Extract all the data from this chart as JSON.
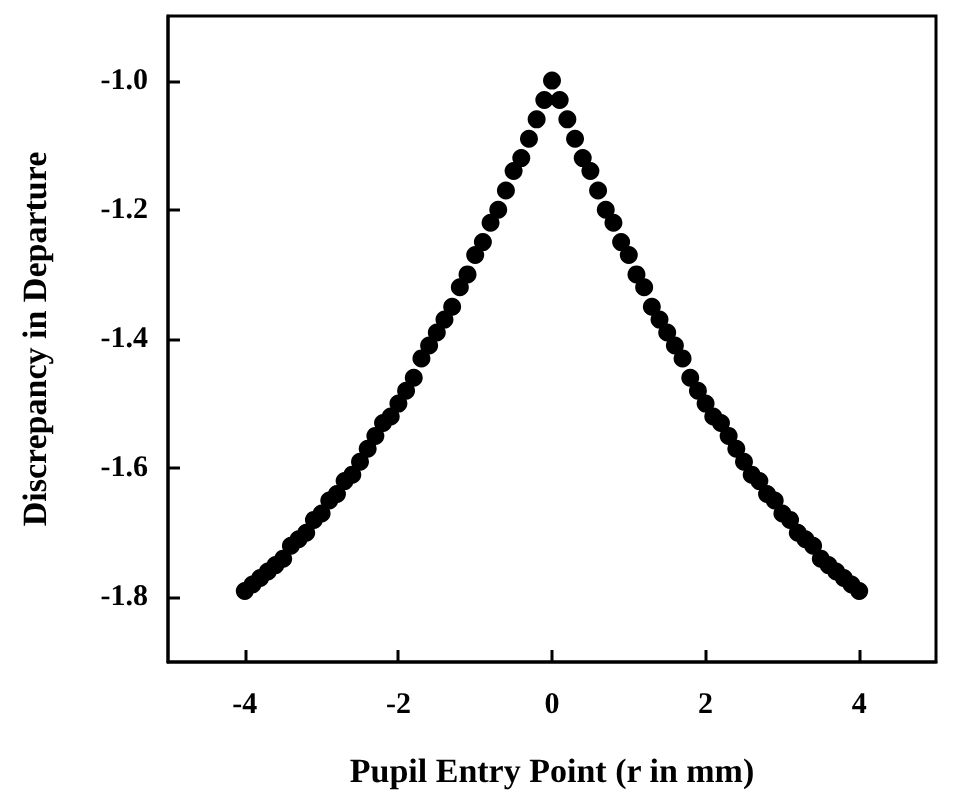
{
  "chart_data": {
    "type": "scatter",
    "xlabel": "Pupil Entry Point (r in mm)",
    "ylabel": "Discrepancy in Departure",
    "x": [
      -4,
      -3.9,
      -3.8,
      -3.7,
      -3.6,
      -3.5,
      -3.4,
      -3.3,
      -3.2,
      -3.1,
      -3,
      -2.9,
      -2.8,
      -2.7,
      -2.6,
      -2.5,
      -2.4,
      -2.3,
      -2.2,
      -2.1,
      -2,
      -1.9,
      -1.8,
      -1.7,
      -1.6,
      -1.5,
      -1.4,
      -1.3,
      -1.2,
      -1.1,
      -1,
      -0.9,
      -0.8,
      -0.7,
      -0.6,
      -0.5,
      -0.4,
      -0.3,
      -0.2,
      -0.1,
      0,
      0.1,
      0.2,
      0.3,
      0.4,
      0.5,
      0.6,
      0.7,
      0.8,
      0.9,
      1,
      1.1,
      1.2,
      1.3,
      1.4,
      1.5,
      1.6,
      1.7,
      1.8,
      1.9,
      2,
      2.1,
      2.2,
      2.3,
      2.4,
      2.5,
      2.6,
      2.7,
      2.8,
      2.9,
      3,
      3.1,
      3.2,
      3.3,
      3.4,
      3.5,
      3.6,
      3.7,
      3.8,
      3.9,
      4
    ],
    "series": [
      {
        "color": "#000000",
        "values": [
          -1.79,
          -1.78,
          -1.77,
          -1.76,
          -1.75,
          -1.74,
          -1.72,
          -1.71,
          -1.7,
          -1.68,
          -1.67,
          -1.65,
          -1.64,
          -1.62,
          -1.61,
          -1.59,
          -1.57,
          -1.55,
          -1.53,
          -1.52,
          -1.5,
          -1.48,
          -1.46,
          -1.43,
          -1.41,
          -1.39,
          -1.37,
          -1.35,
          -1.32,
          -1.3,
          -1.27,
          -1.25,
          -1.22,
          -1.2,
          -1.17,
          -1.14,
          -1.12,
          -1.09,
          -1.06,
          -1.03,
          -1.0,
          -1.03,
          -1.06,
          -1.09,
          -1.12,
          -1.14,
          -1.17,
          -1.2,
          -1.22,
          -1.25,
          -1.27,
          -1.3,
          -1.32,
          -1.35,
          -1.37,
          -1.39,
          -1.41,
          -1.43,
          -1.46,
          -1.48,
          -1.5,
          -1.52,
          -1.53,
          -1.55,
          -1.57,
          -1.59,
          -1.61,
          -1.62,
          -1.64,
          -1.65,
          -1.67,
          -1.68,
          -1.7,
          -1.71,
          -1.72,
          -1.74,
          -1.75,
          -1.76,
          -1.77,
          -1.78,
          -1.79
        ]
      }
    ],
    "xlim": [
      -5,
      5
    ],
    "xticks": [
      -4,
      -2,
      0,
      2,
      4
    ],
    "ylim": [
      -1.9,
      -0.9
    ],
    "yticks": [
      -1.8,
      -1.6,
      -1.4,
      -1.2,
      {
        "value": -1,
        "label": "-1.0"
      }
    ],
    "grid": false,
    "marker": "circle"
  }
}
